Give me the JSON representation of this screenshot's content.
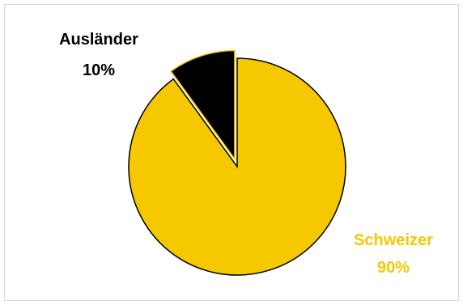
{
  "chart_data": {
    "type": "pie",
    "title": "",
    "slices": [
      {
        "label": "Ausländer",
        "value": 10,
        "value_label": "10%",
        "color": "#000000",
        "exploded": true
      },
      {
        "label": "Schweizer",
        "value": 90,
        "value_label": "90%",
        "color": "#F5C800",
        "exploded": false
      }
    ],
    "label_colors": {
      "Ausländer": "#000000",
      "Schweizer": "#F5C800"
    },
    "slice_border_color": "#F5C800",
    "start_angle_deg": 0,
    "direction": "clockwise",
    "legend": "none"
  }
}
